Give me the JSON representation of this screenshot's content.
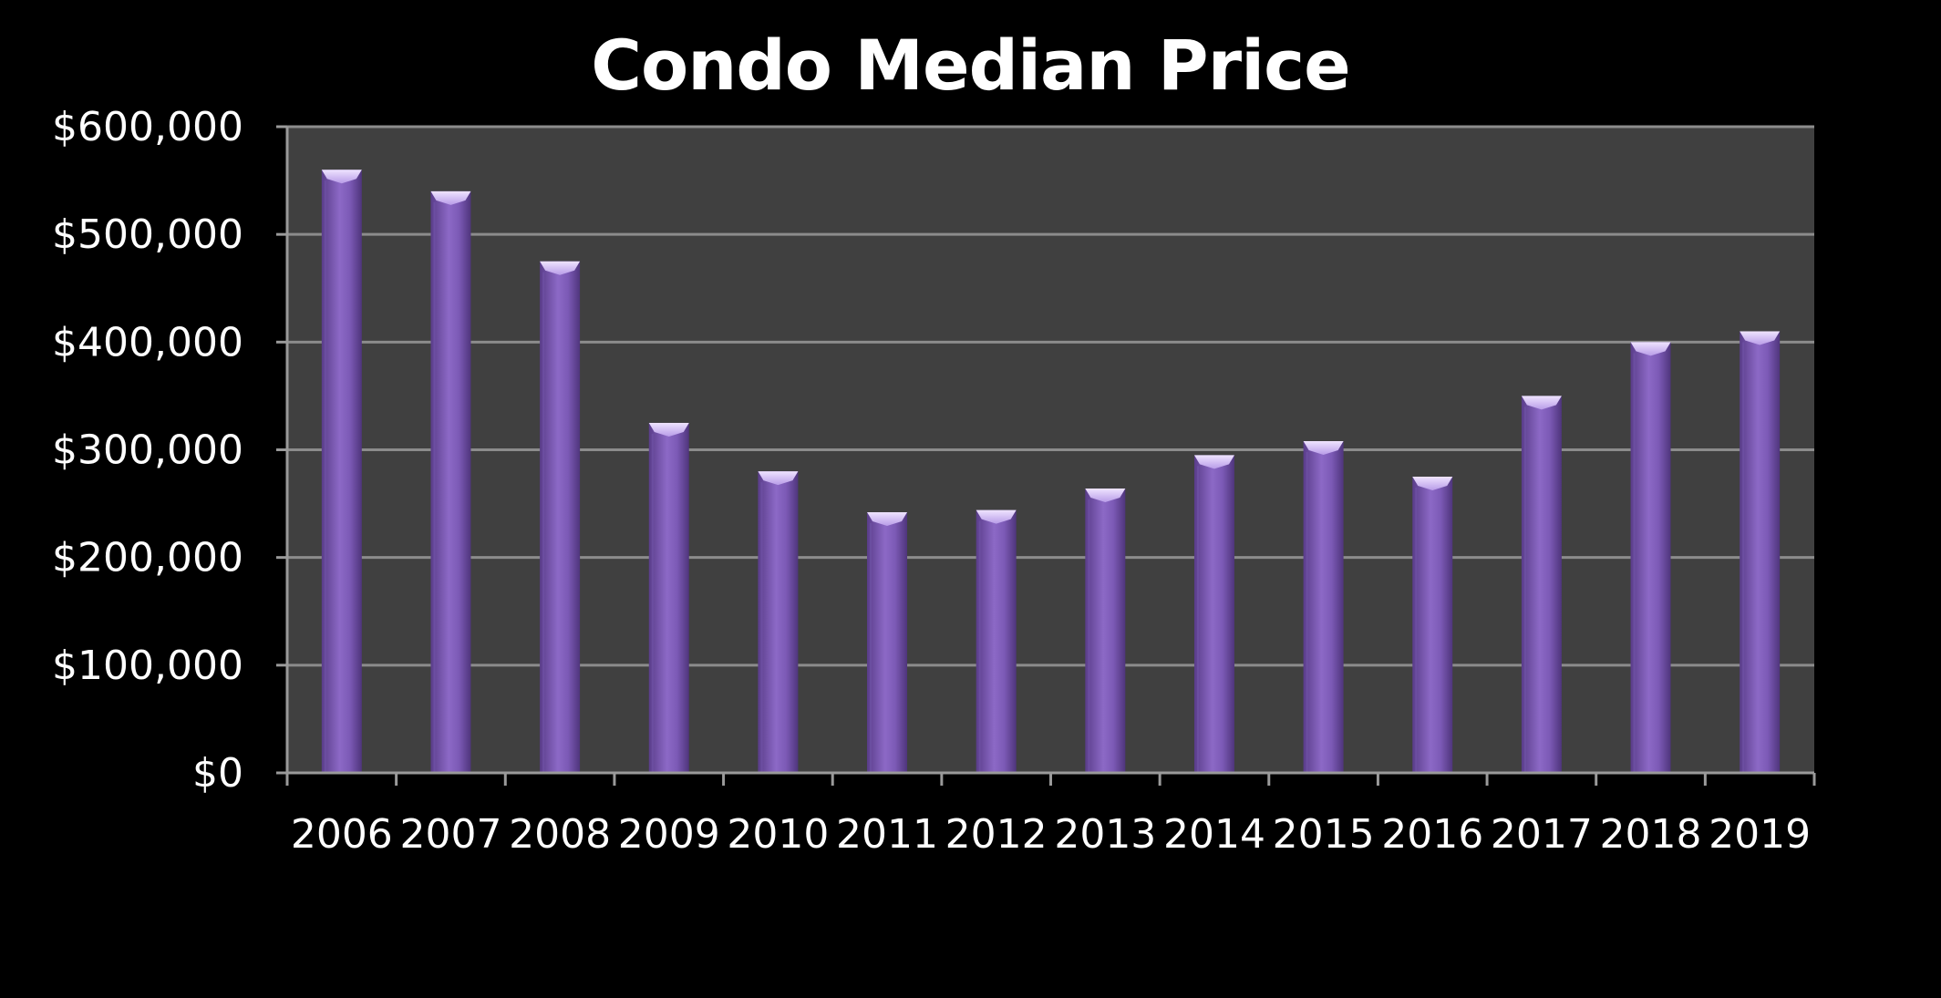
{
  "chart_data": {
    "type": "bar",
    "title": "Condo Median Price",
    "xlabel": "",
    "ylabel": "",
    "categories": [
      "2006",
      "2007",
      "2008",
      "2009",
      "2010",
      "2011",
      "2012",
      "2013",
      "2014",
      "2015",
      "2016",
      "2017",
      "2018",
      "2019"
    ],
    "values": [
      560000,
      540000,
      475000,
      325000,
      280000,
      242000,
      244000,
      264000,
      295000,
      308000,
      275000,
      350000,
      400000,
      410000
    ],
    "ylim": [
      0,
      600000
    ],
    "yticks": [
      0,
      100000,
      200000,
      300000,
      400000,
      500000,
      600000
    ],
    "ytick_labels": [
      "$0",
      "$100,000",
      "$200,000",
      "$300,000",
      "$400,000",
      "$500,000",
      "$600,000"
    ],
    "grid": true,
    "legend": "none",
    "colors": {
      "background": "#000000",
      "plot_area": "#404040",
      "gridline": "#8c8c8c",
      "axis": "#9a9a9a",
      "bar_dark": "#5b3f8c",
      "bar_mid": "#8a66c4",
      "bar_top": "#cdb8f2",
      "text": "#ffffff"
    }
  }
}
